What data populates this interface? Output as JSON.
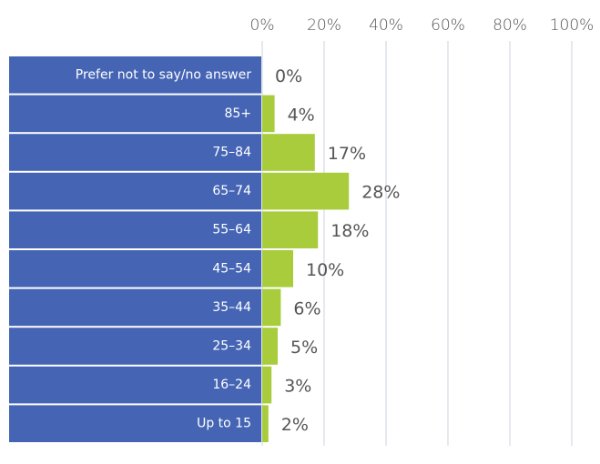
{
  "chart_data": {
    "type": "bar",
    "orientation": "horizontal",
    "categories": [
      "Prefer not to say/no answer",
      "85+",
      "75–84",
      "65–74",
      "55–64",
      "45–54",
      "35–44",
      "25–34",
      "16–24",
      "Up to 15"
    ],
    "values": [
      0,
      4,
      17,
      28,
      18,
      10,
      6,
      5,
      3,
      2
    ],
    "value_labels": [
      "0%",
      "4%",
      "17%",
      "28%",
      "18%",
      "10%",
      "6%",
      "5%",
      "3%",
      "2%"
    ],
    "color": "#a8cc3c",
    "label_color": "#4565b4",
    "xlim": [
      0,
      100
    ],
    "xticks": [
      {
        "value": 0,
        "label": "0%"
      },
      {
        "value": 20,
        "label": "20%"
      },
      {
        "value": 40,
        "label": "40%"
      },
      {
        "value": 60,
        "label": "60%"
      },
      {
        "value": 80,
        "label": "80%"
      },
      {
        "value": 100,
        "label": "100%"
      }
    ],
    "grid": true
  }
}
